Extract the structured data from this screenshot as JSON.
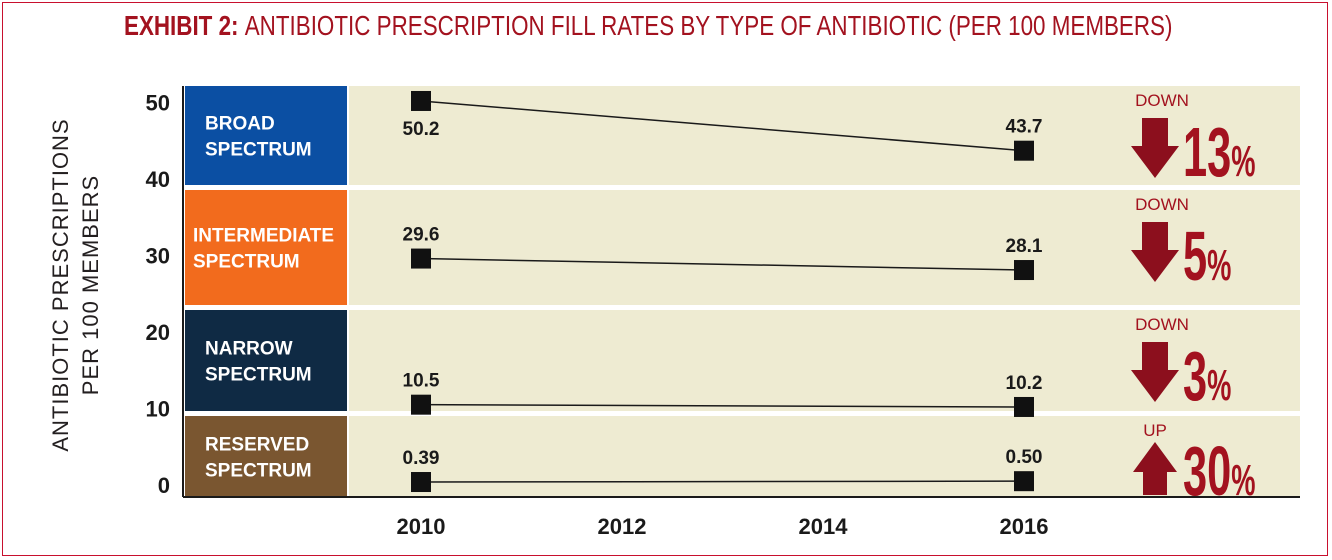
{
  "exhibit": {
    "label": "EXHIBIT 2:",
    "title": "ANTIBIOTIC PRESCRIPTION FILL RATES BY TYPE OF ANTIBIOTIC (PER 100 MEMBERS)"
  },
  "colors": {
    "accent": "#a3121f",
    "panel": "#eeebd2",
    "broad": "#0b4fa3",
    "intermediate": "#f26b1d",
    "narrow": "#0f2a44",
    "reserved": "#7a5630"
  },
  "chart_data": {
    "type": "line",
    "title": "ANTIBIOTIC PRESCRIPTION FILL RATES BY TYPE OF ANTIBIOTIC (PER 100 MEMBERS)",
    "ylabel": [
      "ANTIBIOTIC PRESCRIPTIONS",
      "PER 100 MEMBERS"
    ],
    "xlabel": "",
    "x_ticks": [
      "2010",
      "2012",
      "2014",
      "2016"
    ],
    "y_ticks": [
      "0",
      "10",
      "20",
      "30",
      "40",
      "50"
    ],
    "ylim": [
      0,
      50
    ],
    "xlim": [
      2010,
      2016
    ],
    "series": [
      {
        "name": [
          "BROAD",
          "SPECTRUM"
        ],
        "color_key": "broad",
        "x": [
          2010,
          2016
        ],
        "values": [
          50.2,
          43.7
        ],
        "labels": [
          "50.2",
          "43.7"
        ],
        "change_dir": "down",
        "change_dir_label": "DOWN",
        "change_num": "13",
        "change_unit": "%"
      },
      {
        "name": [
          "INTERMEDIATE",
          "SPECTRUM"
        ],
        "color_key": "intermediate",
        "x": [
          2010,
          2016
        ],
        "values": [
          29.6,
          28.1
        ],
        "labels": [
          "29.6",
          "28.1"
        ],
        "change_dir": "down",
        "change_dir_label": "DOWN",
        "change_num": "5",
        "change_unit": "%"
      },
      {
        "name": [
          "NARROW",
          "SPECTRUM"
        ],
        "color_key": "narrow",
        "x": [
          2010,
          2016
        ],
        "values": [
          10.5,
          10.2
        ],
        "labels": [
          "10.5",
          "10.2"
        ],
        "change_dir": "down",
        "change_dir_label": "DOWN",
        "change_num": "3",
        "change_unit": "%"
      },
      {
        "name": [
          "RESERVED",
          "SPECTRUM"
        ],
        "color_key": "reserved",
        "x": [
          2010,
          2016
        ],
        "values": [
          0.39,
          0.5
        ],
        "labels": [
          "0.39",
          "0.50"
        ],
        "change_dir": "up",
        "change_dir_label": "UP",
        "change_num": "30",
        "change_unit": "%"
      }
    ]
  }
}
